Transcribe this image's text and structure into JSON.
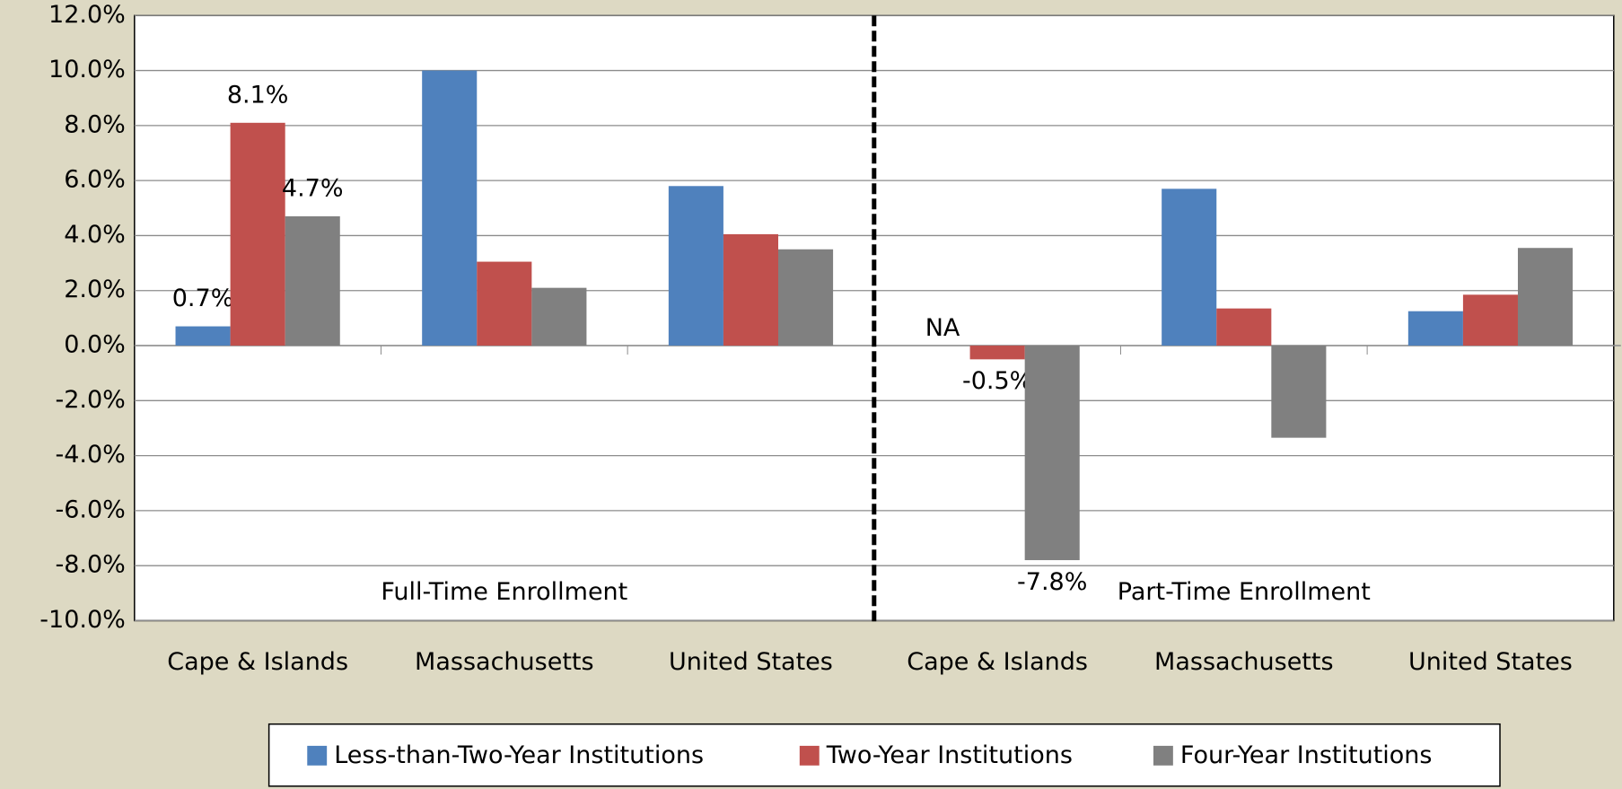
{
  "chart_data": {
    "type": "bar",
    "categories": [
      "Cape & Islands",
      "Massachusetts",
      "United States",
      "Cape & Islands",
      "Massachusetts",
      "United States"
    ],
    "series": [
      {
        "name": "Less-than-Two-Year Institutions",
        "color": "#4f81bd",
        "values": [
          0.7,
          10.0,
          5.8,
          null,
          5.7,
          1.25
        ],
        "value_labels": [
          "0.7%",
          null,
          null,
          "NA",
          null,
          null
        ]
      },
      {
        "name": "Two-Year Institutions",
        "color": "#c0504d",
        "values": [
          8.1,
          3.05,
          4.05,
          -0.5,
          1.35,
          1.85
        ],
        "value_labels": [
          "8.1%",
          null,
          null,
          "-0.5%",
          null,
          null
        ]
      },
      {
        "name": "Four-Year Institutions",
        "color": "#808080",
        "values": [
          4.7,
          2.1,
          3.5,
          -7.8,
          -3.35,
          3.55
        ],
        "value_labels": [
          "4.7%",
          null,
          null,
          "-7.8%",
          null,
          null
        ]
      }
    ],
    "annotations": [
      "Full-Time Enrollment",
      "Part-Time Enrollment"
    ],
    "ylim": [
      -10,
      12
    ],
    "yticks": [
      {
        "value": -10,
        "label": "-10.0%"
      },
      {
        "value": -8,
        "label": "-8.0%"
      },
      {
        "value": -6,
        "label": "-6.0%"
      },
      {
        "value": -4,
        "label": "-4.0%"
      },
      {
        "value": -2,
        "label": "-2.0%"
      },
      {
        "value": 0,
        "label": "0.0%"
      },
      {
        "value": 2,
        "label": "2.0%"
      },
      {
        "value": 4,
        "label": "4.0%"
      },
      {
        "value": 6,
        "label": "6.0%"
      },
      {
        "value": 8,
        "label": "8.0%"
      },
      {
        "value": 10,
        "label": "10.0%"
      },
      {
        "value": 12,
        "label": "12.0%"
      }
    ],
    "grid": true,
    "legend": "bottom"
  }
}
